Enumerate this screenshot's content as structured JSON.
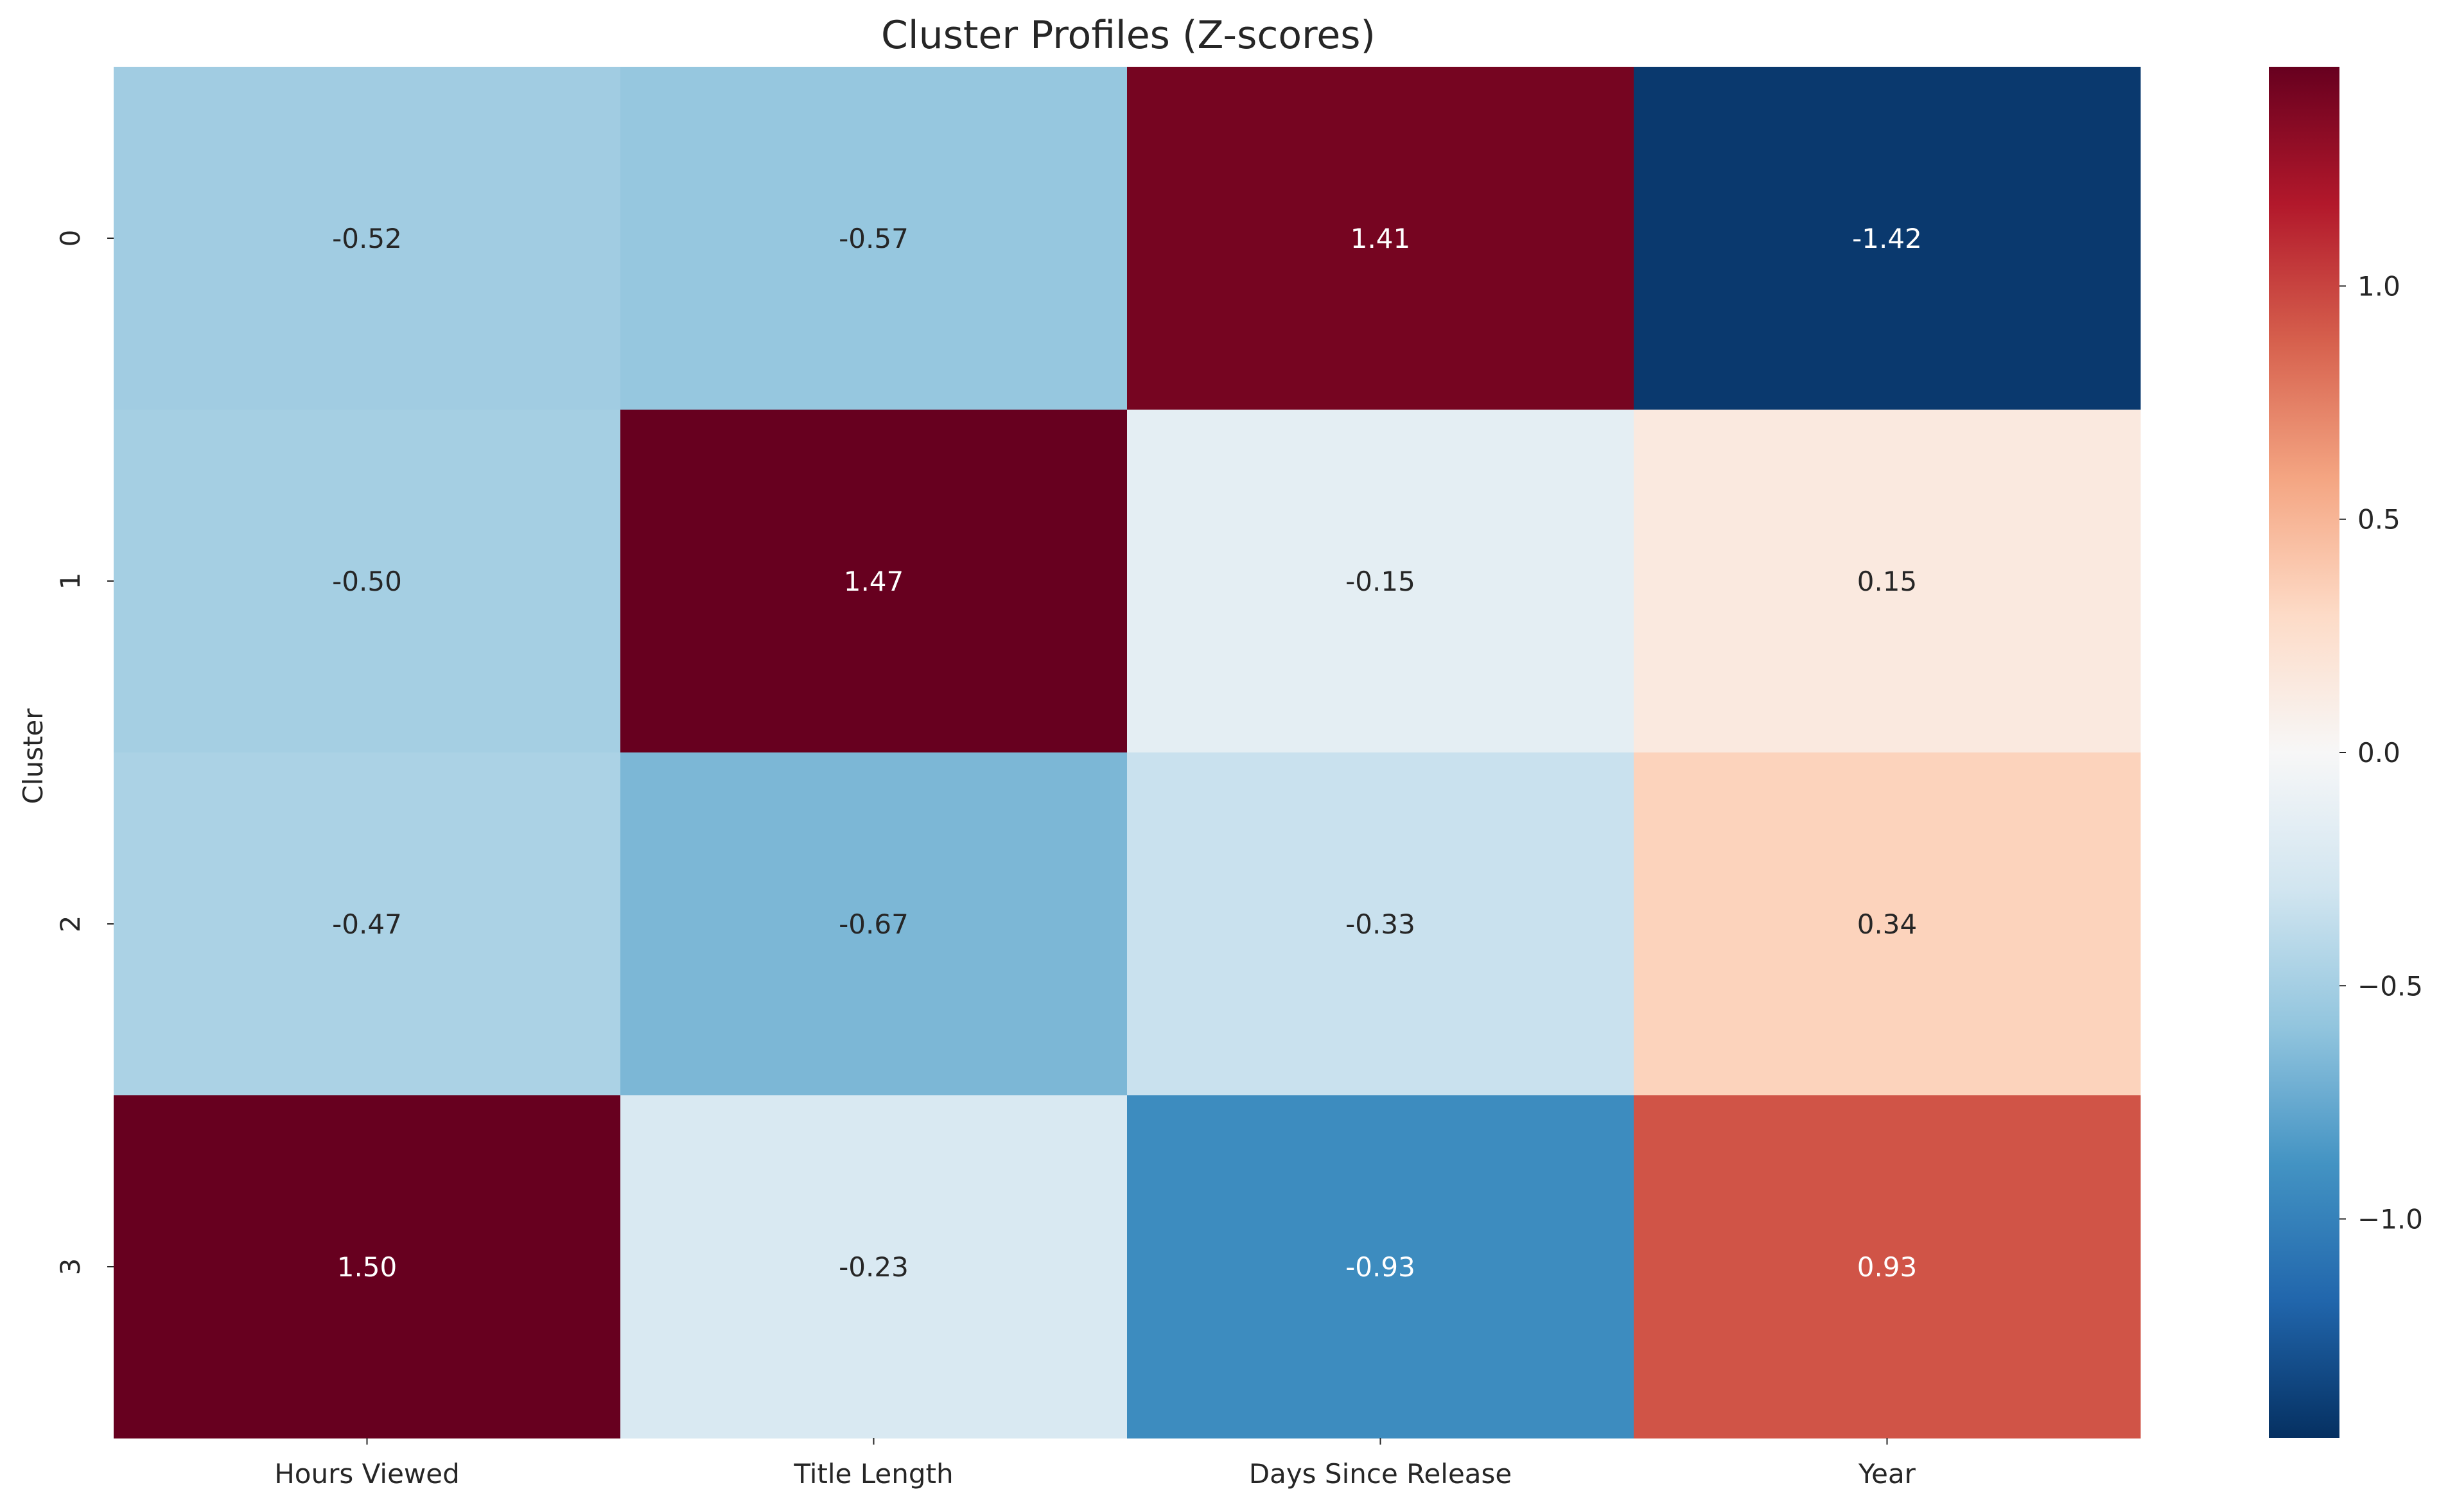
{
  "chart_data": {
    "type": "heatmap",
    "title": "Cluster Profiles (Z-scores)",
    "xlabel": "",
    "ylabel": "Cluster",
    "x_categories": [
      "Hours Viewed",
      "Title Length",
      "Days Since Release",
      "Year"
    ],
    "y_categories": [
      "0",
      "1",
      "2",
      "3"
    ],
    "values": [
      [
        -0.52,
        -0.57,
        1.41,
        -1.42
      ],
      [
        -0.5,
        1.47,
        -0.15,
        0.15
      ],
      [
        -0.47,
        -0.67,
        -0.33,
        0.34
      ],
      [
        1.5,
        -0.23,
        -0.93,
        0.93
      ]
    ],
    "value_labels": [
      [
        "-0.52",
        "-0.57",
        "1.41",
        "-1.42"
      ],
      [
        "-0.50",
        "1.47",
        "-0.15",
        "0.15"
      ],
      [
        "-0.47",
        "-0.67",
        "-0.33",
        "0.34"
      ],
      [
        "1.50",
        "-0.23",
        "-0.93",
        "0.93"
      ]
    ],
    "colormap": "RdBu_r",
    "vmin": -1.47,
    "vmax": 1.47,
    "colorbar": {
      "ticks": [
        1.0,
        0.5,
        0.0,
        -0.5,
        -1.0
      ],
      "tick_labels": [
        "1.0",
        "0.5",
        "0.0",
        "−0.5",
        "−1.0"
      ]
    },
    "colors": {
      "dark_text": "#262626",
      "light_text": "#ffffff"
    },
    "grid": false,
    "legend": "colorbar-right"
  }
}
